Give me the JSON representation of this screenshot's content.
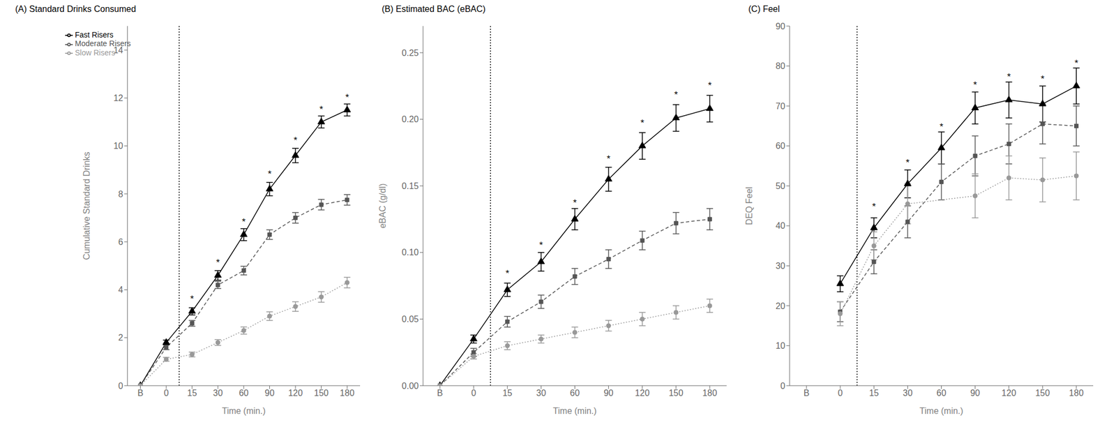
{
  "chart_data": [
    {
      "type": "line",
      "title": "(A) Standard Drinks Consumed",
      "x_label": "Time (min.)",
      "y_label": "Cumulative Standard Drinks",
      "categories": [
        "B",
        "0",
        "15",
        "30",
        "60",
        "90",
        "120",
        "150",
        "180"
      ],
      "ylim": [
        0,
        15
      ],
      "yticks": [
        0,
        2,
        4,
        6,
        8,
        10,
        12,
        14
      ],
      "grid": false,
      "legend": "upper left",
      "series": [
        {
          "name": "Fast Risers",
          "color": "#000000",
          "line_style": "solid",
          "marker": "triangle",
          "values": [
            0.0,
            1.8,
            3.1,
            4.6,
            6.3,
            8.2,
            9.6,
            11.0,
            11.5
          ],
          "errors": [
            0.0,
            0.1,
            0.15,
            0.2,
            0.25,
            0.28,
            0.3,
            0.25,
            0.25
          ]
        },
        {
          "name": "Moderate Risers",
          "color": "#555555",
          "line_style": "dashed",
          "marker": "square",
          "values": [
            0.0,
            1.6,
            2.6,
            4.2,
            4.8,
            6.3,
            7.0,
            7.55,
            7.75
          ],
          "errors": [
            0.0,
            0.1,
            0.12,
            0.15,
            0.18,
            0.2,
            0.22,
            0.22,
            0.22
          ]
        },
        {
          "name": "Slow Risers",
          "color": "#999999",
          "line_style": "dotted",
          "marker": "circle",
          "values": [
            0.0,
            1.1,
            1.3,
            1.8,
            2.3,
            2.9,
            3.3,
            3.7,
            4.3
          ],
          "errors": [
            0.0,
            0.08,
            0.1,
            0.12,
            0.15,
            0.18,
            0.2,
            0.22,
            0.22
          ]
        }
      ],
      "vline": {
        "between": [
          "0",
          "15"
        ],
        "line_style": "dotted",
        "color": "#000000"
      },
      "annotations": [
        {
          "text": "*",
          "x": "15",
          "y": 3.5
        },
        {
          "text": "*",
          "x": "30",
          "y": 5.0
        },
        {
          "text": "*",
          "x": "60",
          "y": 6.7
        },
        {
          "text": "*",
          "x": "90",
          "y": 8.7
        },
        {
          "text": "*",
          "x": "120",
          "y": 10.1
        },
        {
          "text": "*",
          "x": "150",
          "y": 11.4
        },
        {
          "text": "*",
          "x": "180",
          "y": 11.9
        }
      ]
    },
    {
      "type": "line",
      "title": "(B) Estimated BAC (eBAC)",
      "x_label": "Time (min.)",
      "y_label": "eBAC (g/dl)",
      "categories": [
        "B",
        "0",
        "15",
        "30",
        "60",
        "90",
        "120",
        "150",
        "180"
      ],
      "ylim": [
        0.0,
        0.27
      ],
      "yticks": [
        {
          "value": 0.0,
          "label": "0.00"
        },
        {
          "value": 0.05,
          "label": "0.05"
        },
        {
          "value": 0.1,
          "label": "0.10"
        },
        {
          "value": 0.15,
          "label": "0.15"
        },
        {
          "value": 0.2,
          "label": "0.20"
        },
        {
          "value": 0.25,
          "label": "0.25"
        }
      ],
      "grid": false,
      "series": [
        {
          "name": "Fast Risers",
          "color": "#000000",
          "line_style": "solid",
          "marker": "triangle",
          "values": [
            0.0,
            0.035,
            0.072,
            0.093,
            0.125,
            0.155,
            0.18,
            0.201,
            0.208
          ],
          "errors": [
            0.0,
            0.003,
            0.005,
            0.007,
            0.008,
            0.009,
            0.01,
            0.01,
            0.01
          ]
        },
        {
          "name": "Moderate Risers",
          "color": "#555555",
          "line_style": "dashed",
          "marker": "square",
          "values": [
            0.0,
            0.025,
            0.048,
            0.063,
            0.082,
            0.095,
            0.109,
            0.122,
            0.125
          ],
          "errors": [
            0.0,
            0.003,
            0.004,
            0.005,
            0.006,
            0.007,
            0.007,
            0.008,
            0.008
          ]
        },
        {
          "name": "Slow Risers",
          "color": "#999999",
          "line_style": "dotted",
          "marker": "circle",
          "values": [
            0.0,
            0.022,
            0.03,
            0.035,
            0.04,
            0.045,
            0.05,
            0.055,
            0.06
          ],
          "errors": [
            0.0,
            0.002,
            0.003,
            0.003,
            0.004,
            0.004,
            0.005,
            0.005,
            0.005
          ]
        }
      ],
      "vline": {
        "between": [
          "0",
          "15"
        ],
        "line_style": "dotted",
        "color": "#000000"
      },
      "annotations": [
        {
          "text": "*",
          "x": "15",
          "y": 0.082
        },
        {
          "text": "*",
          "x": "30",
          "y": 0.103
        },
        {
          "text": "*",
          "x": "60",
          "y": 0.135
        },
        {
          "text": "*",
          "x": "90",
          "y": 0.168
        },
        {
          "text": "*",
          "x": "120",
          "y": 0.195
        },
        {
          "text": "*",
          "x": "150",
          "y": 0.216
        },
        {
          "text": "*",
          "x": "180",
          "y": 0.223
        }
      ]
    },
    {
      "type": "line",
      "title": "(C) Feel",
      "x_label": "Time (min.)",
      "y_label": "DEQ Feel",
      "categories": [
        "B",
        "0",
        "15",
        "30",
        "60",
        "90",
        "120",
        "150",
        "180"
      ],
      "ylim": [
        0,
        90
      ],
      "yticks": [
        0,
        10,
        20,
        30,
        40,
        50,
        60,
        70,
        80,
        90
      ],
      "grid": false,
      "series": [
        {
          "name": "Fast Risers",
          "color": "#000000",
          "line_style": "solid",
          "marker": "triangle",
          "values": [
            null,
            25.5,
            39.5,
            50.5,
            59.5,
            69.5,
            71.5,
            70.5,
            75.0
          ],
          "errors": [
            null,
            2.0,
            2.5,
            3.5,
            4.0,
            4.0,
            4.5,
            4.5,
            4.5
          ]
        },
        {
          "name": "Moderate Risers",
          "color": "#555555",
          "line_style": "dashed",
          "marker": "square",
          "values": [
            null,
            18.5,
            31.0,
            41.0,
            51.0,
            57.5,
            60.5,
            65.5,
            65.0
          ],
          "errors": [
            null,
            2.5,
            3.0,
            4.0,
            4.5,
            5.0,
            5.0,
            5.0,
            5.0
          ]
        },
        {
          "name": "Slow Risers",
          "color": "#999999",
          "line_style": "dotted",
          "marker": "circle",
          "values": [
            null,
            18.0,
            35.0,
            45.5,
            null,
            47.5,
            52.0,
            51.5,
            52.5
          ],
          "errors": [
            null,
            3.0,
            3.5,
            5.0,
            null,
            5.5,
            5.5,
            5.5,
            6.0
          ]
        }
      ],
      "vline": {
        "between": [
          "0",
          "15"
        ],
        "line_style": "dotted",
        "color": "#000000"
      },
      "annotations": [
        {
          "text": "*",
          "x": "15",
          "y": 44.0
        },
        {
          "text": "*",
          "x": "30",
          "y": 55.0
        },
        {
          "text": "*",
          "x": "60",
          "y": 64.0
        },
        {
          "text": "*",
          "x": "90",
          "y": 74.5
        },
        {
          "text": "*",
          "x": "120",
          "y": 76.5
        },
        {
          "text": "*",
          "x": "150",
          "y": 76.0
        },
        {
          "text": "*",
          "x": "180",
          "y": 80.0
        }
      ]
    }
  ]
}
